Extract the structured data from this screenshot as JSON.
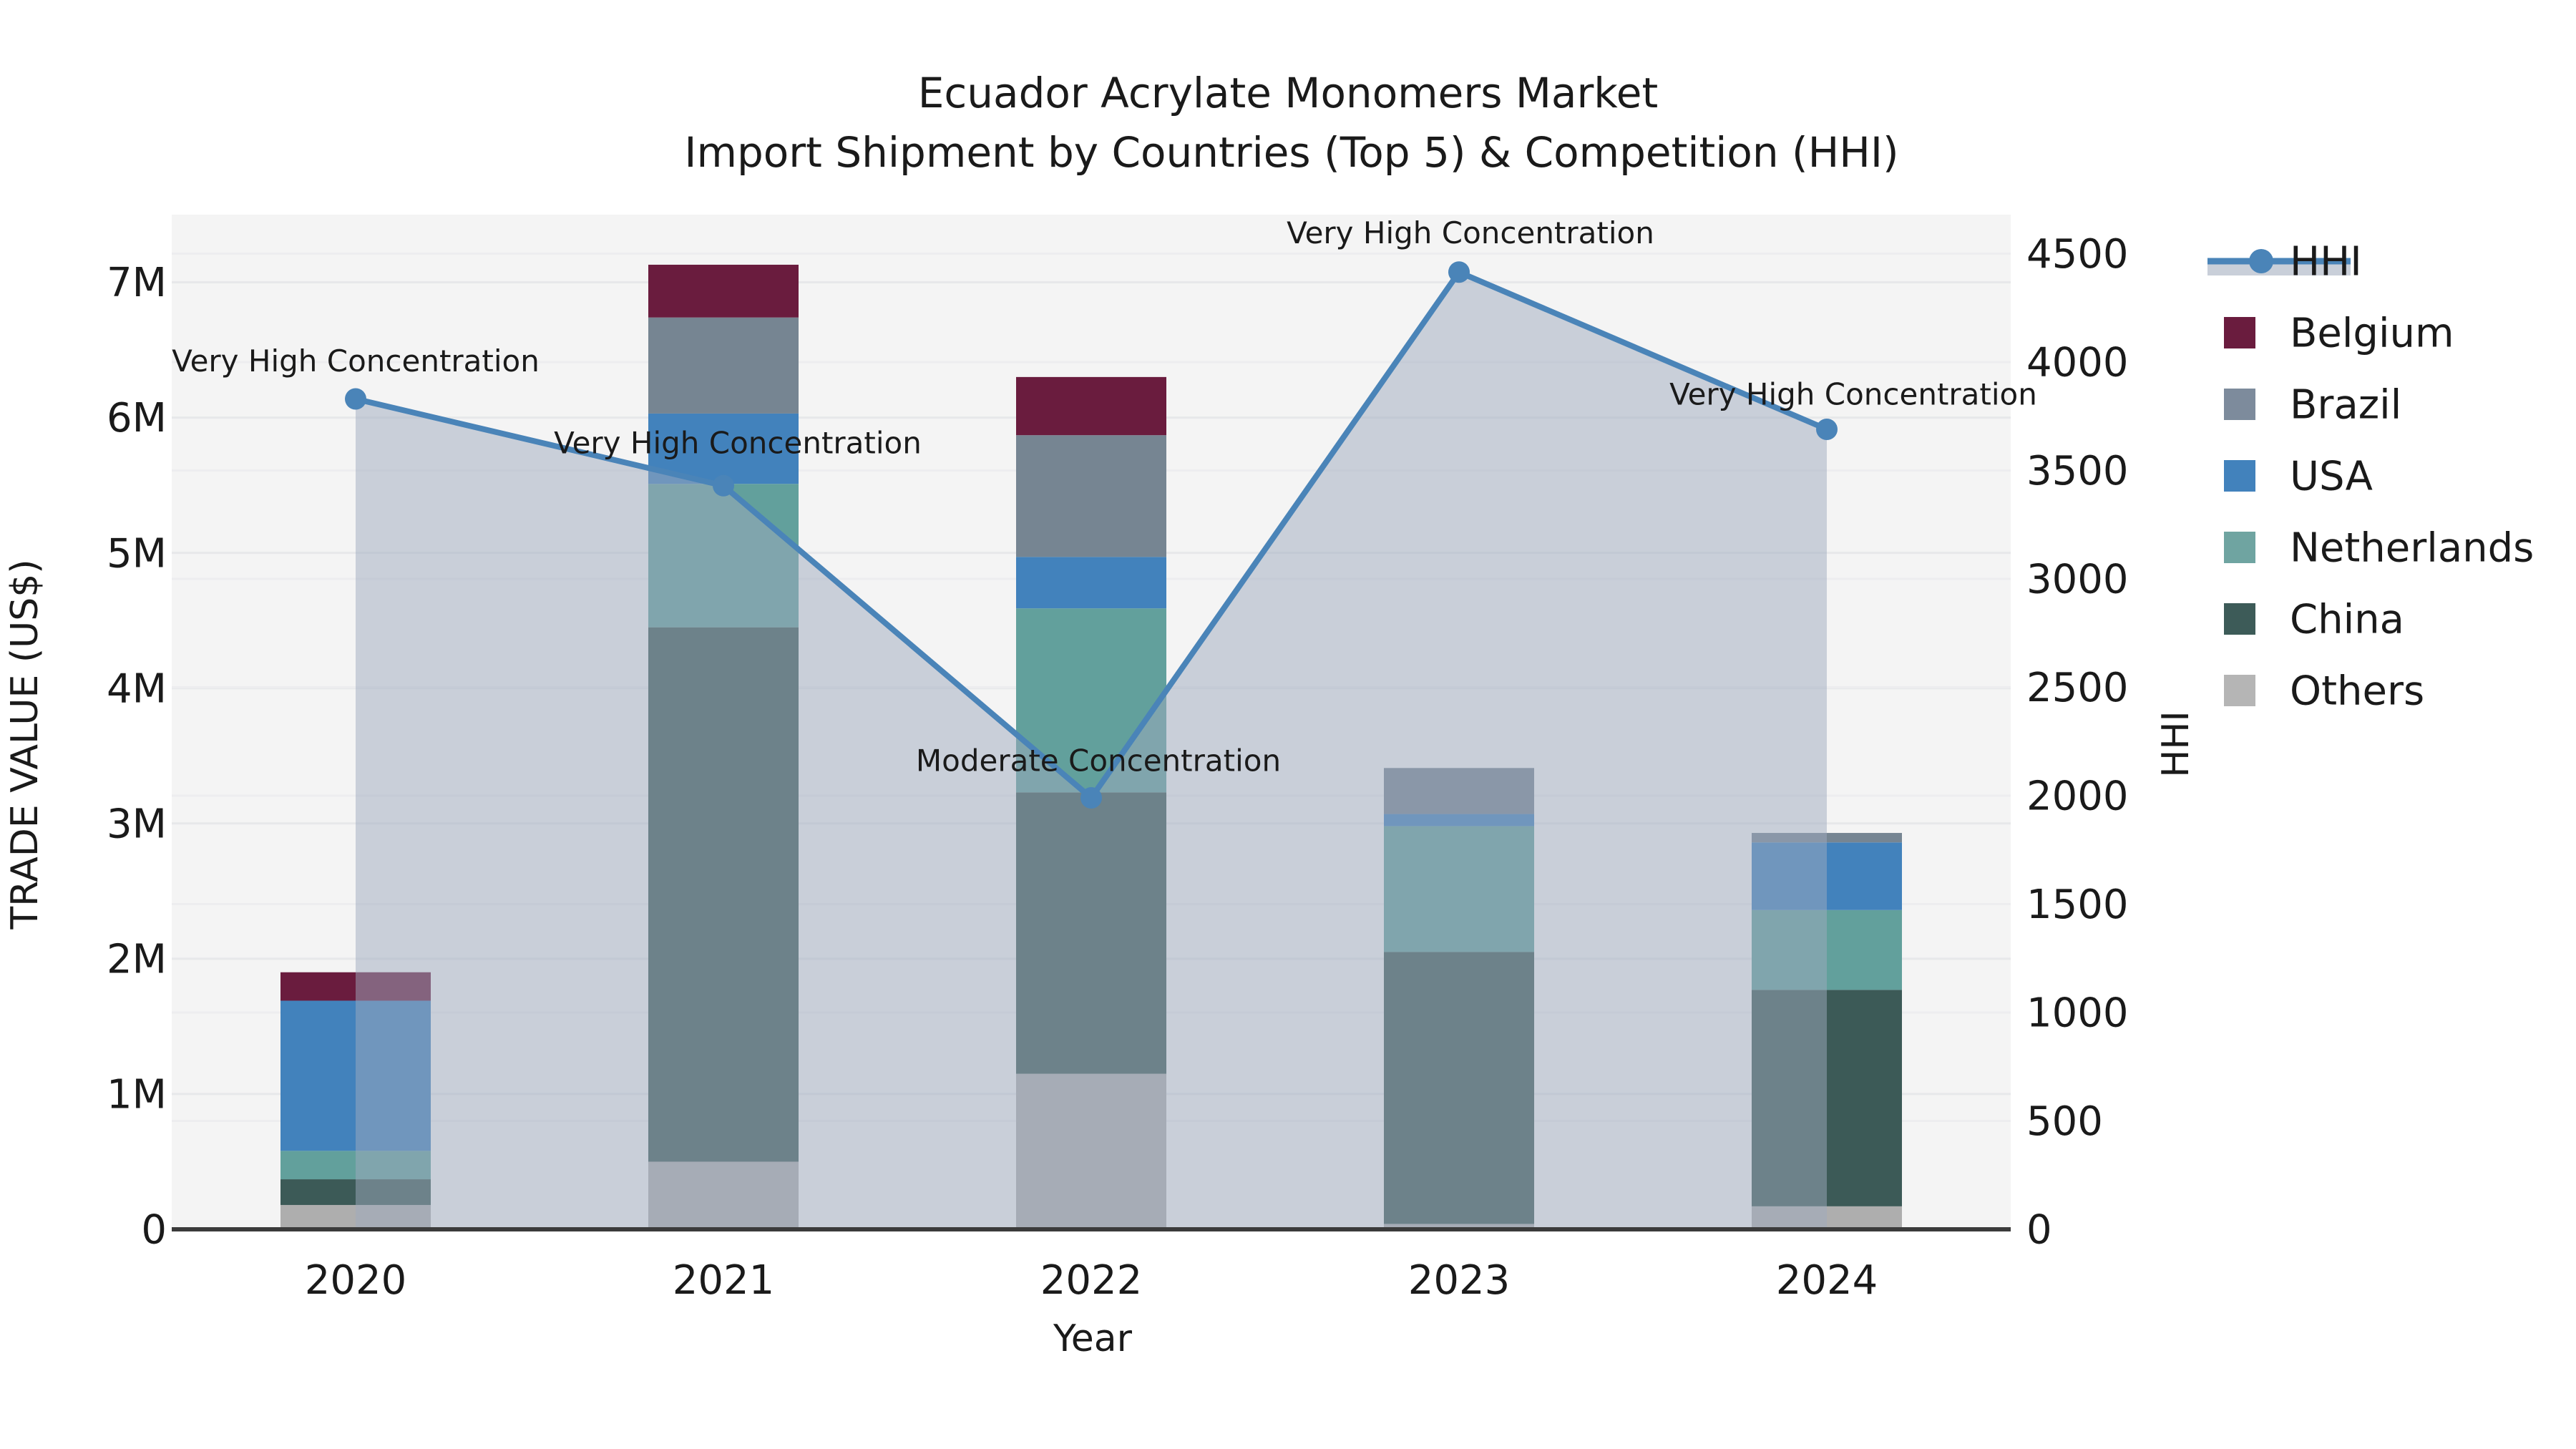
{
  "title": {
    "line1": "Ecuador Acrylate Monomers Market",
    "line2": "Import Shipment by Countries (Top 5) & Competition (HHI)"
  },
  "axes": {
    "x_label": "Year",
    "y_left_label": "TRADE VALUE (US$)",
    "y_right_label": "HHI",
    "x_ticks": [
      "2020",
      "2021",
      "2022",
      "2023",
      "2024"
    ],
    "y_left_ticks": [
      "0",
      "1M",
      "2M",
      "3M",
      "4M",
      "5M",
      "6M",
      "7M"
    ],
    "y_right_ticks": [
      "0",
      "500",
      "1000",
      "1500",
      "2000",
      "2500",
      "3000",
      "3500",
      "4000",
      "4500"
    ]
  },
  "legend": {
    "entries": [
      {
        "label": "HHI",
        "type": "line",
        "color": "#4a84b8",
        "band_color": "#c9cfd9"
      },
      {
        "label": "Belgium",
        "type": "square",
        "color": "#6a1c3e"
      },
      {
        "label": "Brazil",
        "type": "square",
        "color": "#7d8b9c"
      },
      {
        "label": "USA",
        "type": "square",
        "color": "#4282bc"
      },
      {
        "label": "Netherlands",
        "type": "square",
        "color": "#6fa4a1"
      },
      {
        "label": "China",
        "type": "square",
        "color": "#3d5b58"
      },
      {
        "label": "Others",
        "type": "square",
        "color": "#b5b5b5"
      }
    ]
  },
  "annotations": [
    {
      "year": "2020",
      "text": "Very High Concentration"
    },
    {
      "year": "2021",
      "text": "Very High Concentration"
    },
    {
      "year": "2022",
      "text": "Moderate Concentration"
    },
    {
      "year": "2023",
      "text": "Very High Concentration"
    },
    {
      "year": "2024",
      "text": "Very High Concentration"
    }
  ],
  "chart_data": {
    "type": "bar+line",
    "title": "Ecuador Acrylate Monomers Market — Import Shipment by Countries (Top 5) & Competition (HHI)",
    "categories": [
      "2020",
      "2021",
      "2022",
      "2023",
      "2024"
    ],
    "bar_unit": "million US$",
    "stack_order_bottom_to_top": [
      "Others",
      "China",
      "Netherlands",
      "USA",
      "Brazil",
      "Belgium"
    ],
    "series": [
      {
        "name": "Belgium",
        "color": "#6a1c3e",
        "values": [
          0.21,
          0.39,
          0.43,
          0.0,
          0.0
        ]
      },
      {
        "name": "Brazil",
        "color": "#768592",
        "values": [
          0.0,
          0.71,
          0.9,
          0.34,
          0.07
        ]
      },
      {
        "name": "USA",
        "color": "#4282bc",
        "values": [
          1.11,
          0.52,
          0.38,
          0.09,
          0.5
        ]
      },
      {
        "name": "Netherlands",
        "color": "#62a09c",
        "values": [
          0.21,
          1.06,
          1.36,
          0.93,
          0.59
        ]
      },
      {
        "name": "China",
        "color": "#3c5a57",
        "values": [
          0.19,
          3.95,
          2.08,
          2.01,
          1.6
        ]
      },
      {
        "name": "Others",
        "color": "#aeaeae",
        "values": [
          0.18,
          0.5,
          1.15,
          0.04,
          0.17
        ]
      }
    ],
    "bar_totals": [
      1.9,
      7.13,
      6.3,
      3.41,
      2.93
    ],
    "hhi_line": {
      "name": "HHI",
      "color": "#4a84b8",
      "area_fill_color": "#9eaabe",
      "area_fill_opacity": 0.5,
      "values": [
        3830,
        3430,
        1990,
        4415,
        3690
      ]
    },
    "xlabel": "Year",
    "ylabel_left": "TRADE VALUE (US$)",
    "ylabel_right": "HHI",
    "y_left_range_M": [
      0,
      7.5
    ],
    "y_right_range": [
      0,
      4680
    ],
    "grid": "both-axes-horizontal",
    "legend_position": "right-outside"
  },
  "colors": {
    "plot_background": "#f4f4f4",
    "figure_background": "#ffffff",
    "gridline_major": "#e7e8ea",
    "gridline_minor": "#ededef",
    "axis_spine": "#3b3b3b",
    "text": "#1a1a1a"
  }
}
